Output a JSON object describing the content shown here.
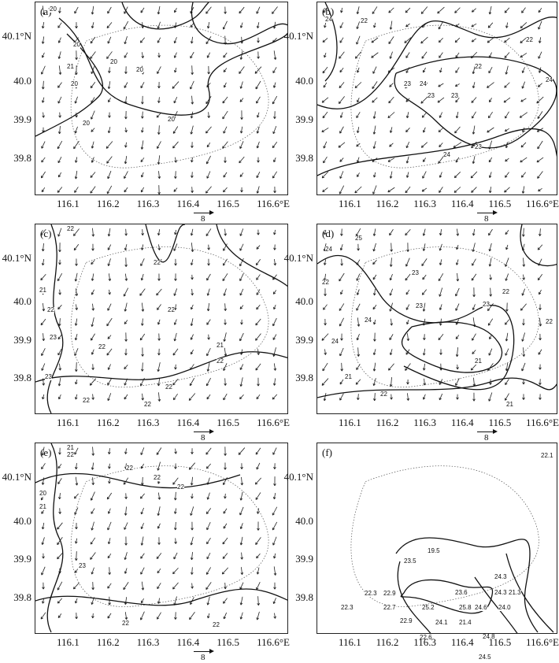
{
  "figure": {
    "x_ticks": [
      "116.1",
      "116.2",
      "116.3",
      "116.4",
      "116.5",
      "116.6°E"
    ],
    "y_ticks": [
      "40.1°N",
      "40.0",
      "39.9",
      "39.8"
    ],
    "scale_label": "8"
  },
  "panels": [
    {
      "label": "(a)",
      "contour_labels": [
        "20",
        "20",
        "20",
        "21",
        "20",
        "20",
        "20",
        "20"
      ]
    },
    {
      "label": "(b)",
      "contour_labels": [
        "24",
        "22",
        "23",
        "24",
        "23",
        "24",
        "22",
        "22",
        "23",
        "24",
        "23"
      ]
    },
    {
      "label": "(c)",
      "contour_labels": [
        "22",
        "21",
        "22",
        "23",
        "22",
        "22",
        "21",
        "23",
        "22",
        "22",
        "22",
        "22",
        "22"
      ]
    },
    {
      "label": "(d)",
      "contour_labels": [
        "25",
        "24",
        "22",
        "23",
        "23",
        "24",
        "23",
        "24",
        "21",
        "22",
        "21",
        "22",
        "22",
        "21"
      ]
    },
    {
      "label": "(e)",
      "contour_labels": [
        "21",
        "22",
        "20",
        "21",
        "22",
        "22",
        "23",
        "22",
        "22",
        "22"
      ]
    },
    {
      "label": "(f)",
      "station_values": [
        "22.1",
        "19.5",
        "23.5",
        "24.3",
        "22.3",
        "22.9",
        "23.6",
        "24.3",
        "21.3",
        "22.3",
        "22.7",
        "25.2",
        "25.8",
        "24.6",
        "24.0",
        "22.9",
        "24.1",
        "21.4",
        "22.6",
        "24.8",
        "24.5"
      ]
    }
  ]
}
